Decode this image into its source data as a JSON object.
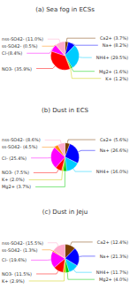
{
  "chart_data": [
    {
      "type": "pie",
      "title": "(a) Sea fog in ECSs",
      "categories": [
        "Ca2+ (3.7%)",
        "Na+ (8.2%)",
        "NH4+ (29.5%)",
        "Mg2+ (1.6%)",
        "K+ (1.2%)",
        "NO3- (35.9%)",
        "Cl-(8.4%)",
        "ss-SO42- (0.5%)",
        "nss-SO42- (11.0%)"
      ],
      "values": [
        3.7,
        8.2,
        29.5,
        1.6,
        1.2,
        35.9,
        8.4,
        0.5,
        11.0
      ],
      "colors": [
        "#7b3f00",
        "#0000ff",
        "#00ccff",
        "#00cc00",
        "#cccc00",
        "#ff0000",
        "#ff00ff",
        "#ff8800",
        "#ffaacc"
      ]
    },
    {
      "type": "pie",
      "title": "(b) Dust in ECS",
      "categories": [
        "Ca2+ (5.6%)",
        "Na+ (26.6%)",
        "NH4+ (16.0%)",
        "Mg2+ (3.7%)",
        "K+ (2.0%)",
        "NO3- (7.5%)",
        "Cl- (25.4%)",
        "ss-SO42- (4.5%)",
        "nss-SO42- (8.6%)"
      ],
      "values": [
        5.6,
        26.6,
        16.0,
        3.7,
        2.0,
        7.5,
        25.4,
        4.5,
        8.6
      ],
      "colors": [
        "#7b3f00",
        "#0000ff",
        "#00ccff",
        "#00cc00",
        "#cccc00",
        "#ff0000",
        "#ff00ff",
        "#ff8800",
        "#ffaacc"
      ]
    },
    {
      "type": "pie",
      "title": "(c) Dust in Jeju",
      "categories": [
        "Ca2+ (12.4%)",
        "Na+ (21.3%)",
        "NH4+ (11.7%)",
        "Mg2+ (4.0%)",
        "K+ (2.9%)",
        "NO3- (11.5%)",
        "Cl- (19.6%)",
        "ss-SO42- (1.3%)",
        "nss-SO42- (15.5%)"
      ],
      "values": [
        12.4,
        21.3,
        11.7,
        4.0,
        2.9,
        11.5,
        19.6,
        1.3,
        15.5
      ],
      "colors": [
        "#7b3f00",
        "#0000ff",
        "#00ccff",
        "#00cc00",
        "#cccc00",
        "#ff0000",
        "#ff00ff",
        "#ff8800",
        "#ffaacc"
      ]
    }
  ]
}
